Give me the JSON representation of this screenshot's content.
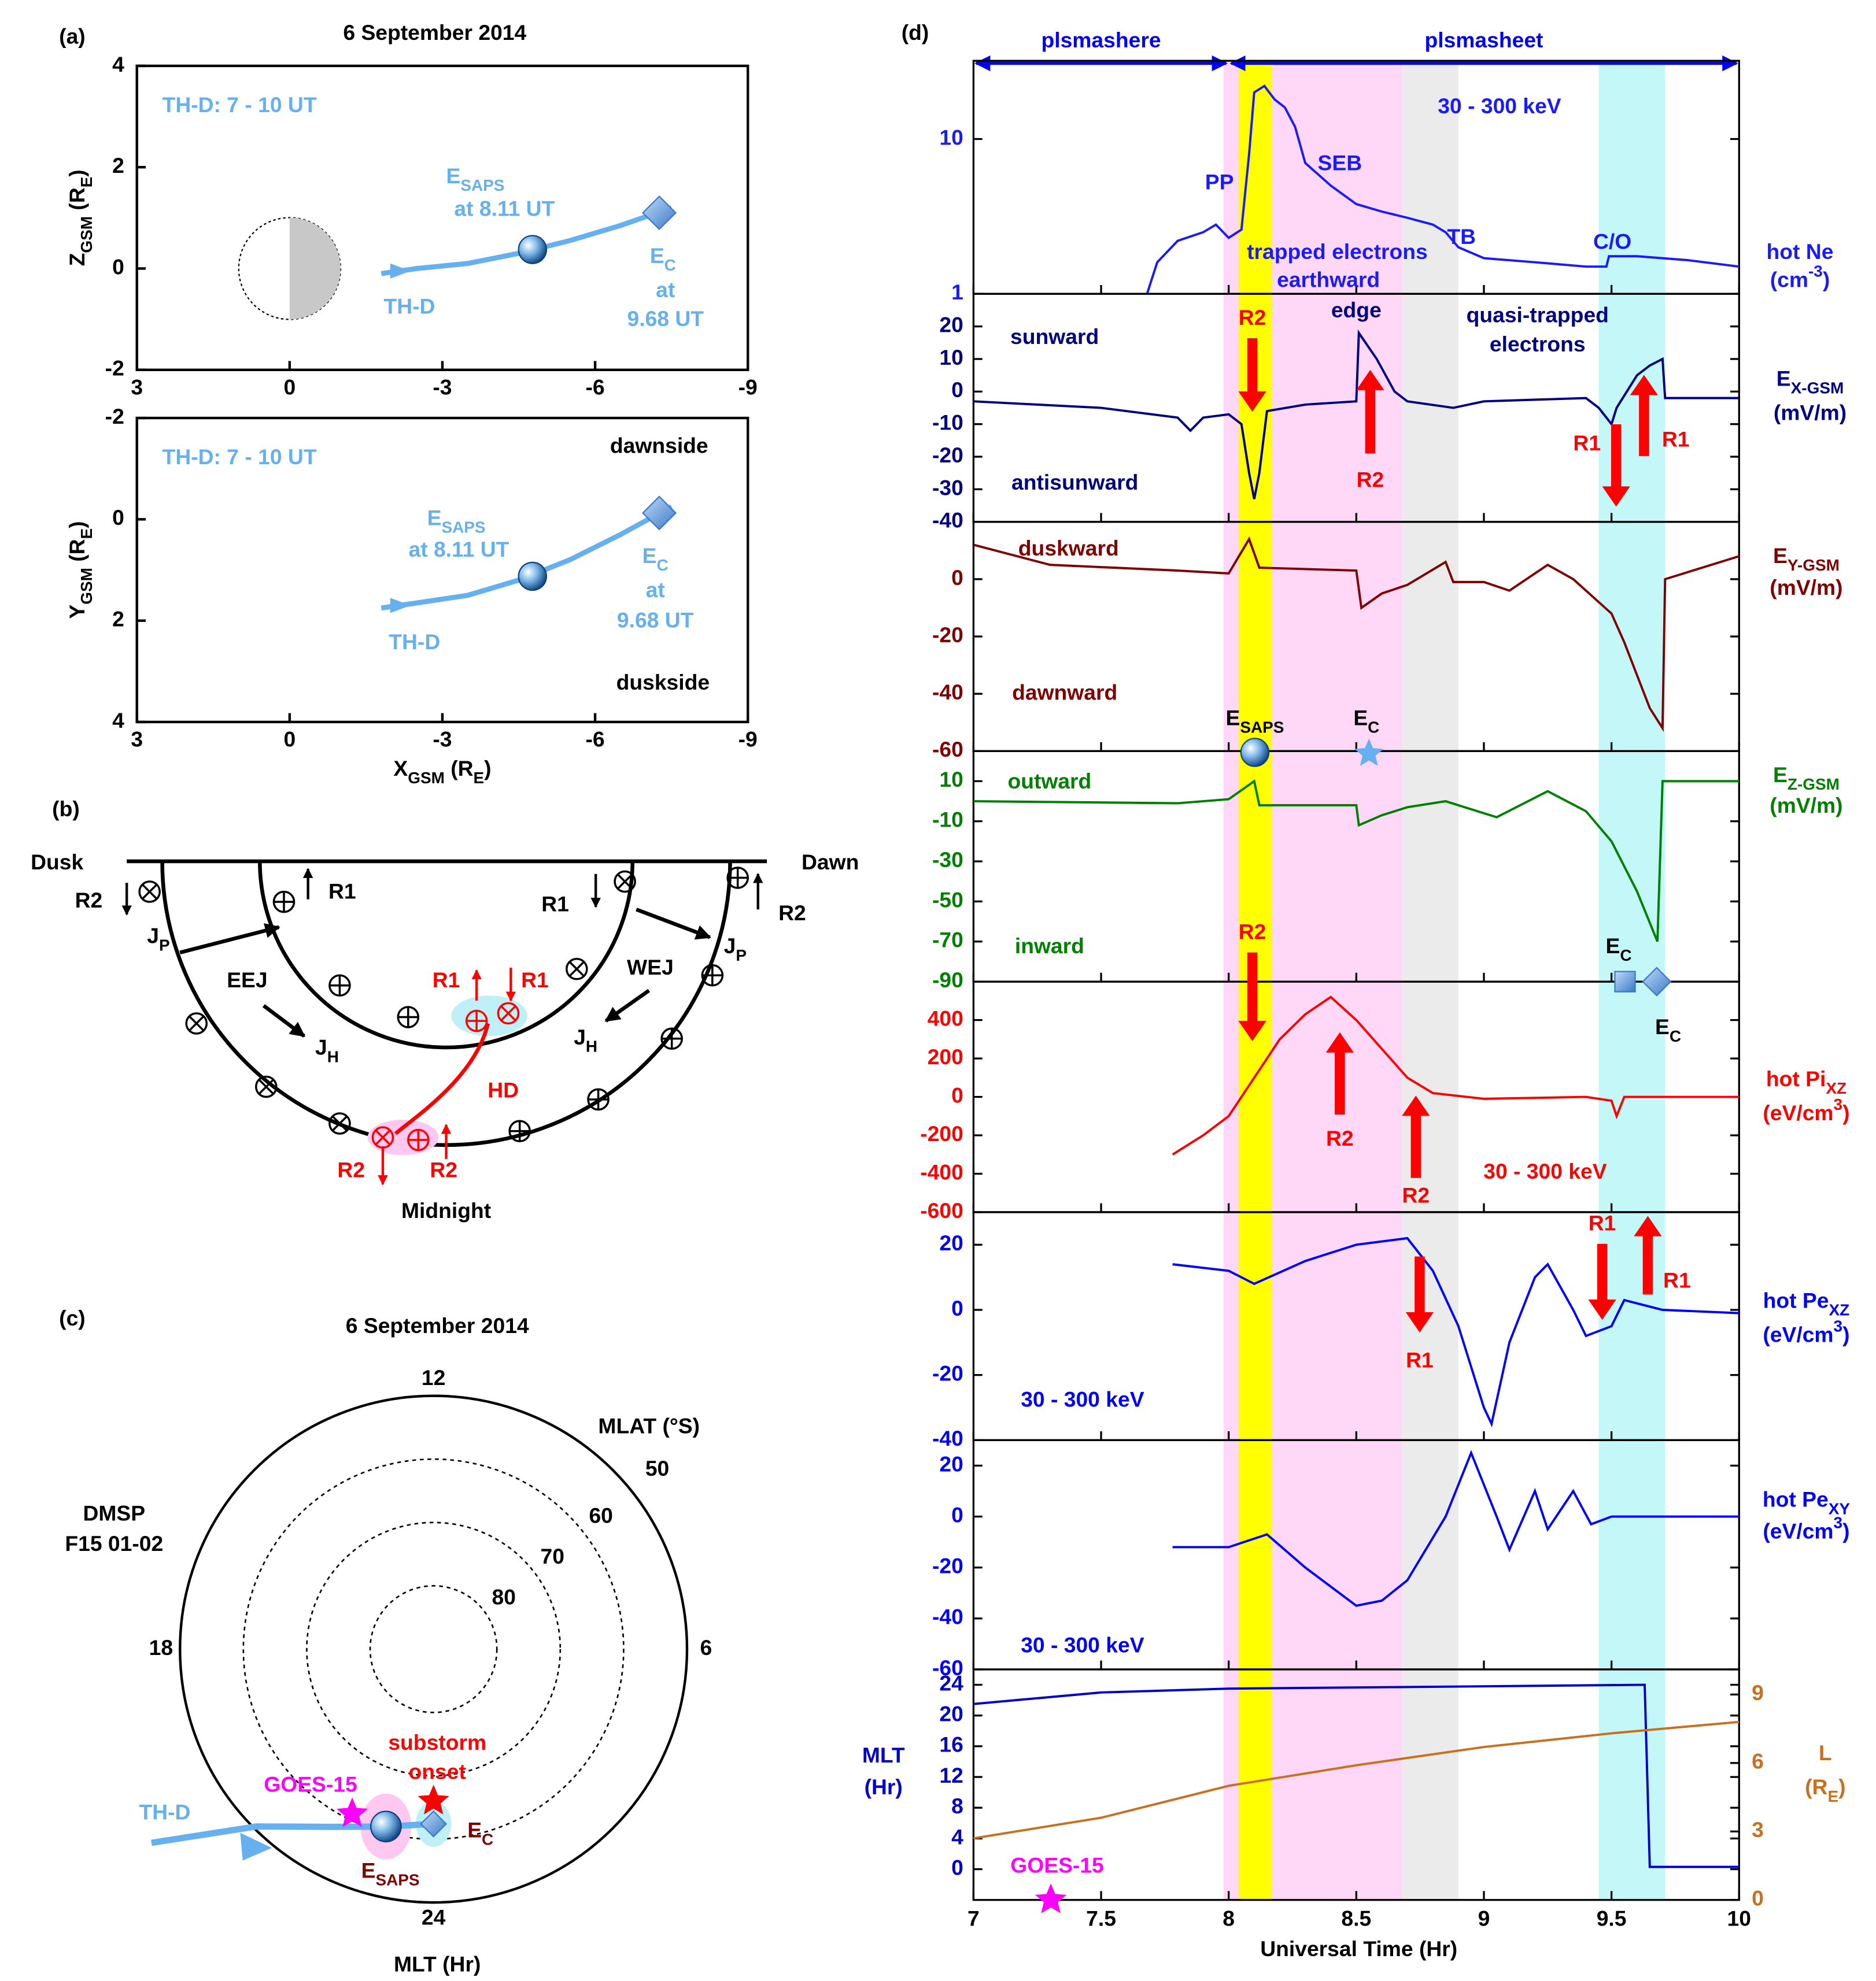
{
  "panel_a": {
    "label": "(a)",
    "title": "6 September 2014",
    "xlabel": [
      "X",
      {
        "sub": "GSM"
      },
      " (R",
      {
        "sub": "E"
      },
      ")"
    ],
    "xlim": [
      3,
      -9
    ],
    "xticks": [
      3,
      0,
      -3,
      -6,
      -9
    ],
    "charts": [
      {
        "type": "line",
        "annotation": "TH-D: 7 - 10 UT",
        "ylabel": [
          "Z",
          {
            "sub": "GSM"
          },
          " (R",
          {
            "sub": "E"
          },
          ")"
        ],
        "ylim": [
          -2,
          4
        ],
        "yticks": [
          -2,
          0,
          2,
          4
        ],
        "series": [
          {
            "name": "TH-D",
            "color": "#66b0f0",
            "x": [
              -1.8,
              -2.5,
              -3.5,
              -4.5,
              -5.5,
              -6.5,
              -7.5
            ],
            "values": [
              -0.1,
              0.0,
              0.1,
              0.3,
              0.55,
              0.85,
              1.2
            ]
          }
        ],
        "points": {
          "x": [
            -4.77,
            -7.26
          ],
          "values": [
            0.375,
            1.1
          ]
        },
        "notes": [
          [
            "E",
            {
              "sub": "SAPS"
            }
          ],
          "at 8.11 UT",
          [
            "E",
            {
              "sub": "C"
            }
          ],
          "at",
          "9.68 UT"
        ]
      },
      {
        "type": "line",
        "annotation": "TH-D: 7 - 10 UT",
        "ylabel": [
          "Y",
          {
            "sub": "GSM"
          },
          " (R",
          {
            "sub": "E"
          },
          ")"
        ],
        "ylim": [
          4,
          -2
        ],
        "yticks": [
          -2,
          0,
          2,
          4
        ],
        "series": [
          {
            "name": "TH-D",
            "color": "#66b0f0",
            "x": [
              -1.8,
              -2.5,
              -3.5,
              -4.5,
              -5.5,
              -6.5,
              -7.5
            ],
            "values": [
              1.75,
              1.65,
              1.5,
              1.2,
              0.8,
              0.3,
              -0.25
            ]
          }
        ],
        "points": {
          "x": [
            -4.77,
            -7.26
          ],
          "values": [
            1.125,
            -0.125
          ]
        },
        "notes": [
          [
            "E",
            {
              "sub": "SAPS"
            }
          ],
          "at 8.11 UT",
          [
            "E",
            {
              "sub": "C"
            }
          ],
          "at",
          "9.68 UT"
        ],
        "sides": [
          "dawnside",
          "duskside"
        ]
      }
    ]
  },
  "panel_b": {
    "labels": [
      "(b)",
      "Dusk",
      "Dawn",
      "R2",
      "R1",
      "R1",
      "R2",
      [
        "J",
        {
          "sub": "P"
        }
      ],
      [
        "J",
        {
          "sub": "P"
        }
      ],
      "EEJ",
      "WEJ",
      [
        "J",
        {
          "sub": "H"
        }
      ],
      [
        "J",
        {
          "sub": "H"
        }
      ],
      "Midnight"
    ],
    "red_labels": [
      "R1",
      "R1",
      "HD",
      "R2",
      "R2"
    ]
  },
  "panel_c": {
    "type": "polar",
    "label": "(c)",
    "title": "6 September 2014",
    "rlim": [
      90,
      50
    ],
    "rticks": [
      50,
      60,
      70,
      80
    ],
    "rlabel": "MLAT (°S)",
    "thetaticks": [
      12,
      18,
      6,
      24
    ],
    "thetalabel": "MLT (Hr)",
    "satellite": [
      "DMSP",
      "F15 01-02"
    ],
    "series": [
      {
        "name": "TH-D",
        "color": "#66b0f0",
        "mlt": [
          20.3,
          21.0,
          22.0,
          23.0,
          24.0
        ],
        "mlat": [
          36,
          50.4,
          57.6,
          61,
          62.4
        ]
      }
    ],
    "markers": {
      "goes": {
        "name": "GOES-15",
        "color": "#ff00ff",
        "mlt": 22.25,
        "mlat": 61
      },
      "onset": {
        "name": [
          "substorm",
          "onset"
        ],
        "color": "#ff0000",
        "mlt": 24,
        "mlat": 66
      },
      "esaps": {
        "name": [
          "E",
          {
            "sub": "SAPS"
          }
        ],
        "color": "#800000",
        "mlt": 23,
        "mlat": 61
      },
      "ec": {
        "name": [
          "E",
          {
            "sub": "C"
          }
        ],
        "color": "#800000",
        "mlt": 24,
        "mlat": 62.4
      }
    }
  },
  "panel_d": {
    "label": "(d)",
    "xlim": [
      7,
      10
    ],
    "xticks": [
      7,
      7.5,
      8,
      8.5,
      9,
      9.5,
      10
    ],
    "xlabel": "Universal Time (Hr)",
    "regions": [
      {
        "name": "plsmashere",
        "x": [
          7,
          8
        ]
      },
      {
        "name": "plsmasheet",
        "x": [
          8,
          10
        ]
      }
    ],
    "region_color": "#0000ff",
    "arrow_color": "#ff0000",
    "bands": [
      {
        "x": [
          7.98,
          8.68
        ],
        "color": "#ffd8f8"
      },
      {
        "x": [
          8.68,
          8.9
        ],
        "color": "#ebebeb"
      },
      {
        "x": [
          8.04,
          8.17
        ],
        "color": "#ffff00"
      },
      {
        "x": [
          9.45,
          9.71
        ],
        "color": "#c4f8f8"
      }
    ],
    "markers": [
      [
        "E",
        {
          "sub": "SAPS"
        }
      ],
      [
        "E",
        {
          "sub": "C"
        }
      ],
      [
        "E",
        {
          "sub": "C"
        }
      ],
      [
        "E",
        {
          "sub": "C"
        }
      ]
    ],
    "charts": [
      {
        "type": "line",
        "log": true,
        "ylim": [
          1,
          32
        ],
        "yticks": [
          1,
          10
        ],
        "ylabel": [
          [
            "hot Ne"
          ],
          [
            "(cm",
            {
              "sup": "-3"
            },
            ")"
          ]
        ],
        "series": [
          {
            "color": "#1a1aff",
            "x": [
              7.68,
              7.72,
              7.8,
              7.9,
              7.95,
              8.0,
              8.05,
              8.08,
              8.1,
              8.14,
              8.18,
              8.22,
              8.26,
              8.3,
              8.4,
              8.5,
              8.6,
              8.7,
              8.8,
              8.85,
              8.9,
              9.0,
              9.2,
              9.4,
              9.48,
              9.49,
              9.6,
              9.8,
              10
            ],
            "values": [
              1,
              1.6,
              2.2,
              2.5,
              2.8,
              2.3,
              2.6,
              8,
              20,
              22,
              18,
              16,
              12,
              7,
              5,
              3.8,
              3.4,
              3.1,
              2.8,
              2.5,
              2.0,
              1.7,
              1.6,
              1.5,
              1.5,
              1.75,
              1.75,
              1.65,
              1.5
            ]
          }
        ],
        "notes": [
          "30 - 300 keV",
          "PP",
          "SEB",
          "TB",
          "C/O",
          "trapped electrons",
          "earthward"
        ],
        "arrows": []
      },
      {
        "type": "line",
        "ylim": [
          -40,
          30
        ],
        "yticks": [
          20,
          10,
          0,
          -10,
          -20,
          -30,
          -40
        ],
        "ylabel": [
          [
            "E",
            {
              "sub": "X-GSM"
            }
          ],
          [
            "(mV/m)"
          ]
        ],
        "series": [
          {
            "color": "#000080",
            "x": [
              7,
              7.5,
              7.8,
              7.85,
              7.9,
              8.0,
              8.05,
              8.08,
              8.1,
              8.12,
              8.15,
              8.3,
              8.5,
              8.51,
              8.58,
              8.65,
              8.7,
              8.88,
              9.0,
              9.4,
              9.45,
              9.5,
              9.52,
              9.6,
              9.65,
              9.7,
              9.71,
              10
            ],
            "values": [
              -3,
              -5,
              -8,
              -12,
              -8,
              -7,
              -10,
              -25,
              -33,
              -25,
              -6,
              -4,
              -3,
              18,
              10,
              0,
              -3,
              -5,
              -3,
              -2,
              -5,
              -10,
              -5,
              5,
              8,
              10,
              -2,
              -2
            ]
          }
        ],
        "notes": [
          "edge",
          "quasi-trapped",
          "electrons",
          "sunward",
          "antisunward"
        ],
        "arrows": [
          "R2",
          "R2",
          "R1",
          "R1"
        ]
      },
      {
        "type": "line",
        "ylim": [
          -60,
          20
        ],
        "yticks": [
          0,
          -20,
          -40,
          -60
        ],
        "ylabel": [
          [
            "E",
            {
              "sub": "Y-GSM"
            }
          ],
          [
            "(mV/m)"
          ]
        ],
        "series": [
          {
            "color": "#800000",
            "x": [
              7,
              7.3,
              7.8,
              8.0,
              8.08,
              8.12,
              8.5,
              8.52,
              8.6,
              8.7,
              8.85,
              8.88,
              9.0,
              9.1,
              9.25,
              9.35,
              9.45,
              9.5,
              9.55,
              9.65,
              9.7,
              9.71,
              10
            ],
            "values": [
              12,
              5,
              3,
              2,
              14,
              4,
              3,
              -10,
              -5,
              -2,
              6,
              -1,
              -1,
              -4,
              5,
              0,
              -8,
              -12,
              -22,
              -45,
              -52,
              0,
              8
            ]
          }
        ],
        "notes": [
          "duskward",
          "dawnward"
        ],
        "arrows": []
      },
      {
        "type": "line",
        "ylim": [
          -90,
          25
        ],
        "yticks": [
          10,
          -10,
          -30,
          -50,
          -70,
          -90
        ],
        "ylabel": [
          [
            "E",
            {
              "sub": "Z-GSM"
            }
          ],
          [
            "(mV/m)"
          ]
        ],
        "series": [
          {
            "color": "#008000",
            "x": [
              7,
              7.8,
              8.0,
              8.1,
              8.12,
              8.5,
              8.51,
              8.6,
              8.7,
              8.85,
              9.05,
              9.25,
              9.4,
              9.5,
              9.6,
              9.68,
              9.7,
              10
            ],
            "values": [
              0,
              -1,
              1,
              10,
              -2,
              -2,
              -12,
              -7,
              -3,
              0,
              -8,
              5,
              -5,
              -20,
              -45,
              -70,
              10,
              10
            ]
          }
        ],
        "notes": [
          "outward",
          "inward"
        ],
        "arrows": []
      },
      {
        "type": "line",
        "ylim": [
          -600,
          600
        ],
        "yticks": [
          400,
          200,
          0,
          -200,
          -400,
          -600
        ],
        "ylabel": [
          [
            "hot Pi",
            {
              "sub": "XZ"
            }
          ],
          [
            "(eV/cm",
            {
              "sup": "3"
            },
            ")"
          ]
        ],
        "series": [
          {
            "color": "#ff0000",
            "x": [
              7.78,
              7.9,
              8.0,
              8.1,
              8.2,
              8.3,
              8.4,
              8.5,
              8.6,
              8.7,
              8.8,
              9.0,
              9.4,
              9.5,
              9.52,
              9.55,
              10
            ],
            "values": [
              -300,
              -200,
              -100,
              100,
              300,
              430,
              520,
              400,
              250,
              100,
              20,
              -10,
              0,
              -20,
              -100,
              0,
              0
            ]
          }
        ],
        "notes": [
          "30 - 300 keV"
        ],
        "arrows": [
          "R2",
          "R2",
          "R2"
        ]
      },
      {
        "type": "line",
        "ylim": [
          -40,
          30
        ],
        "yticks": [
          20,
          0,
          -20,
          -40
        ],
        "ylabel": [
          [
            "hot Pe",
            {
              "sub": "XZ"
            }
          ],
          [
            "(eV/cm",
            {
              "sup": "3"
            },
            ")"
          ]
        ],
        "series": [
          {
            "color": "#0000ff",
            "x": [
              7.78,
              8.0,
              8.1,
              8.3,
              8.5,
              8.7,
              8.8,
              8.9,
              9.0,
              9.03,
              9.1,
              9.2,
              9.25,
              9.35,
              9.4,
              9.5,
              9.55,
              9.7,
              10
            ],
            "values": [
              14,
              12,
              8,
              15,
              20,
              22,
              12,
              -5,
              -30,
              -35,
              -10,
              10,
              14,
              0,
              -8,
              -5,
              3,
              0,
              -1
            ]
          }
        ],
        "notes": [
          "30 - 300 keV"
        ],
        "arrows": [
          "R1",
          "R1",
          "R1"
        ]
      },
      {
        "type": "line",
        "ylim": [
          -60,
          30
        ],
        "yticks": [
          20,
          0,
          -20,
          -40,
          -60
        ],
        "ylabel": [
          [
            "hot Pe",
            {
              "sub": "XY"
            }
          ],
          [
            "(eV/cm",
            {
              "sup": "3"
            },
            ")"
          ]
        ],
        "series": [
          {
            "color": "#0000ff",
            "x": [
              7.78,
              8.0,
              8.15,
              8.3,
              8.5,
              8.6,
              8.7,
              8.85,
              8.95,
              9.05,
              9.1,
              9.2,
              9.25,
              9.35,
              9.42,
              9.5,
              10
            ],
            "values": [
              -12,
              -12,
              -7,
              -20,
              -35,
              -33,
              -25,
              0,
              25,
              0,
              -13,
              10,
              -5,
              10,
              -3,
              0,
              0
            ]
          }
        ],
        "notes": [
          "30 - 300 keV"
        ],
        "arrows": []
      },
      {
        "type": "line",
        "ylim": [
          -4,
          26
        ],
        "yticks": [
          0,
          4,
          8,
          12,
          16,
          20,
          24
        ],
        "y2lim": [
          0,
          10.1
        ],
        "y2ticks": [
          0,
          3,
          6,
          9
        ],
        "ylabel": [
          [
            "MLT"
          ],
          [
            "(Hr)"
          ]
        ],
        "y2label": [
          [
            "L"
          ],
          [
            "(R",
            {
              "sub": "E"
            },
            ")"
          ]
        ],
        "series": [
          {
            "color": "#0000cc",
            "x": [
              7,
              7.5,
              8,
              9,
              9.63,
              9.65,
              10
            ],
            "values": [
              21.5,
              23,
              23.5,
              23.8,
              24,
              0.3,
              0.3
            ]
          },
          {
            "color": "#c87020",
            "axis": "y2",
            "x": [
              7,
              7.5,
              8,
              8.5,
              9,
              9.5,
              10
            ],
            "values": [
              2.7,
              3.6,
              5.0,
              5.9,
              6.7,
              7.3,
              7.8
            ]
          }
        ],
        "notes": [
          "GOES-15"
        ],
        "note_color": "#ff00ff",
        "arrows": []
      }
    ]
  }
}
